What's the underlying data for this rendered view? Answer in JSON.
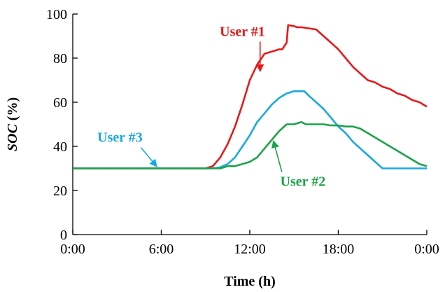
{
  "chart_data": {
    "type": "line",
    "title": "",
    "xlabel": "Time (h)",
    "ylabel_italic": "SOC",
    "ylabel_unit": " (%)",
    "x_unit": "hours",
    "xlim": [
      0,
      24
    ],
    "ylim": [
      0,
      100
    ],
    "x_ticks": [
      0,
      6,
      12,
      18,
      24
    ],
    "x_tick_labels": [
      "0:00",
      "6:00",
      "12:00",
      "18:00",
      "0:00"
    ],
    "y_ticks": [
      0,
      20,
      40,
      60,
      80,
      100
    ],
    "y_tick_labels": [
      "0",
      "20",
      "40",
      "60",
      "80",
      "100"
    ],
    "grid": false,
    "legend": "none",
    "series": [
      {
        "name": "User #1",
        "color": "#e8191a",
        "x": [
          0,
          9.0,
          9.5,
          10.0,
          10.5,
          11.0,
          11.5,
          12.0,
          12.5,
          13.0,
          13.5,
          14.0,
          14.2,
          14.5,
          14.6,
          15.0,
          15.2,
          15.5,
          16.5,
          17.0,
          17.5,
          18.0,
          18.5,
          19.0,
          19.5,
          20.0,
          20.5,
          21.0,
          21.5,
          22.0,
          22.5,
          23.0,
          23.5,
          24.0
        ],
        "values": [
          30,
          30,
          31,
          35,
          41,
          49,
          59,
          70,
          77,
          82,
          83,
          84,
          84,
          87,
          95,
          94.5,
          94,
          94,
          93,
          90,
          87,
          84,
          80,
          76,
          73,
          70,
          69,
          67,
          66,
          64,
          63,
          61,
          60,
          58
        ]
      },
      {
        "name": "User #3",
        "color": "#19a9e0",
        "x": [
          0,
          9.5,
          10.0,
          10.5,
          11.0,
          11.5,
          12.0,
          12.5,
          13.0,
          13.5,
          14.0,
          14.5,
          15.0,
          15.3,
          15.7,
          16.0,
          16.5,
          17.0,
          17.5,
          18.0,
          18.5,
          19.0,
          19.5,
          20.0,
          20.5,
          21.0,
          21.5,
          22.0,
          22.5,
          23.0,
          24.0
        ],
        "values": [
          30,
          30,
          30.5,
          32,
          35,
          40,
          45,
          51,
          55,
          59,
          62,
          64,
          65,
          65,
          65,
          63,
          60,
          57,
          53,
          49,
          46,
          42,
          39,
          36,
          33,
          30,
          30,
          30,
          30,
          30,
          30
        ]
      },
      {
        "name": "User #2",
        "color": "#1ea24a",
        "x": [
          0,
          10.0,
          10.5,
          11.0,
          11.5,
          12.0,
          12.5,
          13.0,
          13.5,
          14.0,
          14.5,
          15.0,
          15.5,
          15.8,
          16.5,
          17.0,
          17.5,
          18.0,
          18.5,
          19.0,
          19.5,
          20.0,
          20.5,
          21.0,
          21.5,
          22.0,
          22.5,
          23.0,
          23.5,
          24.0
        ],
        "values": [
          30,
          30,
          31,
          31,
          32,
          33,
          35,
          39,
          43,
          47,
          50,
          50,
          51,
          50,
          50,
          50,
          49.5,
          49.5,
          49,
          49,
          48,
          46,
          44,
          42,
          40,
          38,
          36,
          34,
          32,
          31
        ]
      }
    ],
    "annotations": [
      {
        "text": "User #1",
        "color": "#e8191a",
        "label_x": 11.5,
        "label_y": 90,
        "arrow_to_x": 12.7,
        "arrow_to_y": 74
      },
      {
        "text": "User #3",
        "color": "#19a9e0",
        "label_x": 3.2,
        "label_y": 42,
        "arrow_to_x": 5.7,
        "arrow_to_y": 30.8
      },
      {
        "text": "User #2",
        "color": "#1ea24a",
        "label_x": 15.6,
        "label_y": 22,
        "arrow_to_x": 13.6,
        "arrow_to_y": 42.5
      }
    ]
  }
}
